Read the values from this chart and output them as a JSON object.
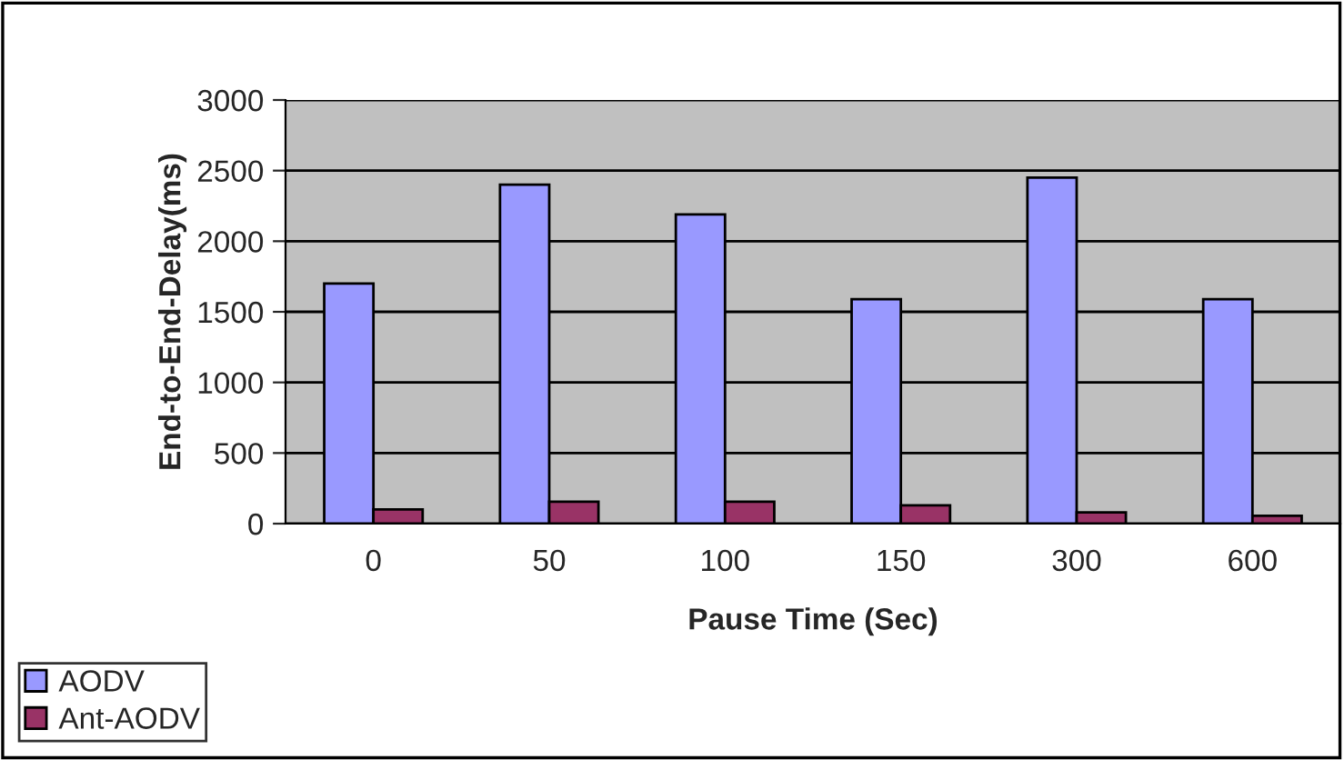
{
  "chart_data": {
    "type": "bar",
    "xlabel": "Pause Time (Sec)",
    "ylabel": "End-to-End-Delay(ms)",
    "categories": [
      "0",
      "50",
      "100",
      "150",
      "300",
      "600"
    ],
    "series": [
      {
        "name": "AODV",
        "color": "#9999ff",
        "values": [
          1700,
          2400,
          2190,
          1590,
          2450,
          1590
        ]
      },
      {
        "name": "Ant-AODV",
        "color": "#993366",
        "values": [
          100,
          155,
          155,
          130,
          80,
          55
        ]
      }
    ],
    "ylim": [
      0,
      3000
    ],
    "yticks": [
      0,
      500,
      1000,
      1500,
      2000,
      2500,
      3000
    ],
    "grid": "y",
    "legend": "bottom left"
  }
}
